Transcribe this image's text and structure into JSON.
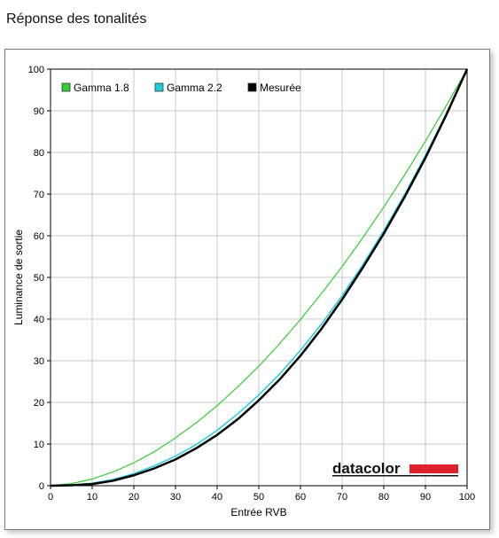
{
  "page": {
    "title": "Réponse des tonalités"
  },
  "colors": {
    "gamma18": "#33cc33",
    "gamma22": "#22cce0",
    "measured": "#000000",
    "grid": "#c8c8c8",
    "logo_bar": "#e0202a"
  },
  "logo": {
    "text": "datacolor"
  },
  "chart_data": {
    "type": "line",
    "title": "Réponse des tonalités",
    "xlabel": "Entrée RVB",
    "ylabel": "Luminance de sortie",
    "xlim": [
      0,
      100
    ],
    "ylim": [
      0,
      100
    ],
    "xticks": [
      0,
      10,
      20,
      30,
      40,
      50,
      60,
      70,
      80,
      90,
      100
    ],
    "yticks": [
      0,
      10,
      20,
      30,
      40,
      50,
      60,
      70,
      80,
      90,
      100
    ],
    "grid": true,
    "legend_position": "top-left",
    "x": [
      0,
      5,
      10,
      15,
      20,
      25,
      30,
      35,
      40,
      45,
      50,
      55,
      60,
      65,
      70,
      75,
      80,
      85,
      90,
      95,
      100
    ],
    "series": [
      {
        "name": "Gamma 1.8",
        "values": [
          0,
          0.5,
          1.6,
          3.3,
          5.5,
          8.2,
          11.5,
          15.1,
          19.2,
          23.8,
          28.7,
          34.1,
          39.9,
          46.1,
          52.6,
          59.6,
          66.9,
          74.6,
          82.7,
          91.2,
          100
        ]
      },
      {
        "name": "Gamma 2.2",
        "values": [
          0,
          0.1,
          0.6,
          1.5,
          2.9,
          4.8,
          7.1,
          9.9,
          13.3,
          17.3,
          21.8,
          26.8,
          32.5,
          38.7,
          45.6,
          53.1,
          61.2,
          69.9,
          79.3,
          89.3,
          100
        ]
      },
      {
        "name": "Mesurée",
        "values": [
          0,
          0.1,
          0.4,
          1.2,
          2.5,
          4.2,
          6.3,
          9.0,
          12.2,
          16.0,
          20.5,
          25.5,
          31.2,
          37.6,
          44.7,
          52.4,
          60.5,
          69.3,
          78.7,
          89.0,
          100
        ]
      }
    ]
  }
}
